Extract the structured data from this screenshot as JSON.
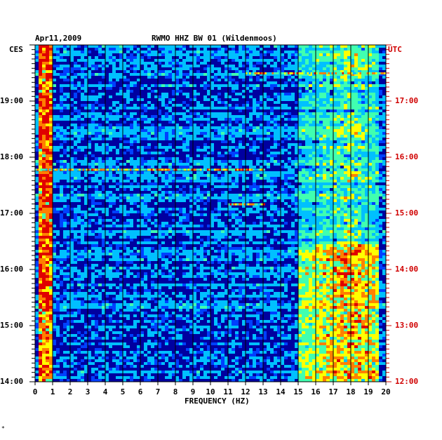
{
  "chart_data": {
    "type": "heatmap",
    "date": "Apr11,2009",
    "title": "RWMO HHZ BW 01 (Wildenmoos)",
    "left_axis_label": "CES",
    "right_axis_label": "UTC",
    "xlabel": "FREQUENCY (HZ)",
    "x_ticks": [
      "0",
      "1",
      "2",
      "3",
      "4",
      "5",
      "6",
      "7",
      "8",
      "9",
      "10",
      "11",
      "12",
      "13",
      "14",
      "15",
      "16",
      "17",
      "18",
      "19",
      "20"
    ],
    "xlim": [
      0,
      20
    ],
    "left_ticks": [
      "19:00",
      "18:00",
      "17:00",
      "16:00",
      "15:00",
      "14:00"
    ],
    "right_ticks": [
      "17:00",
      "16:00",
      "15:00",
      "14:00",
      "13:00",
      "12:00"
    ],
    "hours_visible": 6,
    "grid": true,
    "colormap": [
      "#0000a0",
      "#0040ff",
      "#00c0ff",
      "#40ffb0",
      "#ffff00",
      "#ff8000",
      "#e00000"
    ],
    "features": [
      {
        "kind": "low-frequency band",
        "fmin": 0.1,
        "fmax": 0.8,
        "intensity": "high"
      },
      {
        "kind": "high-frequency noise band",
        "fmin": 15.0,
        "fmax": 19.5,
        "intensity": "medium-high",
        "stronger_before": "16:30"
      },
      {
        "kind": "broadband line",
        "time": "19:30",
        "fmin": 12.0,
        "fmax": 20.0
      },
      {
        "kind": "broadband line",
        "time": "17:47",
        "fmin": 0.0,
        "fmax": 13.0
      },
      {
        "kind": "narrow line",
        "time": "17:10",
        "fmin": 11.0,
        "fmax": 13.0
      }
    ]
  },
  "footer_mark": "*"
}
